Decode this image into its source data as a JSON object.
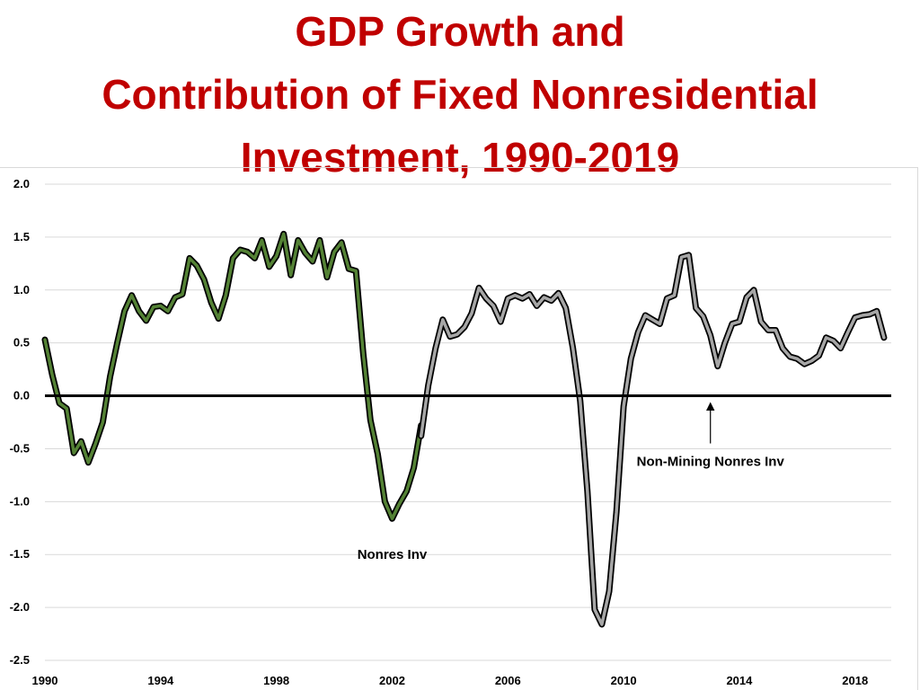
{
  "title_lines": [
    "GDP Growth and",
    "Contribution of Fixed Nonresidential",
    "Investment, 1990-2019"
  ],
  "chart_data": {
    "type": "line",
    "title": "GDP Growth and Contribution of Fixed Nonresidential Investment, 1990-2019",
    "xlabel": "",
    "ylabel": "",
    "ylim": [
      -2.5,
      2.0
    ],
    "xlim": [
      1990,
      2019.25
    ],
    "y_ticks": [
      "2.0",
      "1.5",
      "1.0",
      "0.5",
      "0.0",
      "-0.5",
      "-1.0",
      "-1.5",
      "-2.0",
      "-2.5"
    ],
    "x_ticks": [
      "1990",
      "1994",
      "1998",
      "2002",
      "2006",
      "2010",
      "2014",
      "2018"
    ],
    "grid": true,
    "colors": {
      "nonres": "#548235",
      "nonmining": "#a6a6a6",
      "outline": "#000000",
      "zero_line": "#000000",
      "grid": "#d9d9d9",
      "title": "#c00000"
    },
    "series": [
      {
        "name": "Nonres Inv",
        "points": [
          [
            1990.0,
            0.53
          ],
          [
            1990.25,
            0.2
          ],
          [
            1990.5,
            -0.07
          ],
          [
            1990.75,
            -0.12
          ],
          [
            1991.0,
            -0.54
          ],
          [
            1991.25,
            -0.43
          ],
          [
            1991.5,
            -0.63
          ],
          [
            1991.75,
            -0.45
          ],
          [
            1992.0,
            -0.25
          ],
          [
            1992.25,
            0.18
          ],
          [
            1992.5,
            0.5
          ],
          [
            1992.75,
            0.8
          ],
          [
            1993.0,
            0.95
          ],
          [
            1993.25,
            0.8
          ],
          [
            1993.5,
            0.71
          ],
          [
            1993.75,
            0.84
          ],
          [
            1994.0,
            0.85
          ],
          [
            1994.25,
            0.8
          ],
          [
            1994.5,
            0.93
          ],
          [
            1994.75,
            0.96
          ],
          [
            1995.0,
            1.3
          ],
          [
            1995.25,
            1.23
          ],
          [
            1995.5,
            1.1
          ],
          [
            1995.75,
            0.88
          ],
          [
            1996.0,
            0.73
          ],
          [
            1996.25,
            0.95
          ],
          [
            1996.5,
            1.3
          ],
          [
            1996.75,
            1.38
          ],
          [
            1997.0,
            1.36
          ],
          [
            1997.25,
            1.3
          ],
          [
            1997.5,
            1.47
          ],
          [
            1997.75,
            1.22
          ],
          [
            1998.0,
            1.32
          ],
          [
            1998.25,
            1.53
          ],
          [
            1998.5,
            1.14
          ],
          [
            1998.75,
            1.47
          ],
          [
            1999.0,
            1.35
          ],
          [
            1999.25,
            1.27
          ],
          [
            1999.5,
            1.47
          ],
          [
            1999.75,
            1.12
          ],
          [
            2000.0,
            1.36
          ],
          [
            2000.25,
            1.45
          ],
          [
            2000.5,
            1.2
          ],
          [
            2000.75,
            1.18
          ],
          [
            2001.0,
            0.4
          ],
          [
            2001.25,
            -0.23
          ],
          [
            2001.5,
            -0.55
          ],
          [
            2001.75,
            -1.0
          ],
          [
            2002.0,
            -1.16
          ],
          [
            2002.25,
            -1.02
          ],
          [
            2002.5,
            -0.9
          ],
          [
            2002.75,
            -0.68
          ],
          [
            2003.0,
            -0.28
          ]
        ]
      },
      {
        "name": "Non-Mining Nonres Inv",
        "points": [
          [
            2003.0,
            -0.38
          ],
          [
            2003.25,
            0.1
          ],
          [
            2003.5,
            0.45
          ],
          [
            2003.75,
            0.72
          ],
          [
            2004.0,
            0.56
          ],
          [
            2004.25,
            0.58
          ],
          [
            2004.5,
            0.65
          ],
          [
            2004.75,
            0.78
          ],
          [
            2005.0,
            1.02
          ],
          [
            2005.25,
            0.92
          ],
          [
            2005.5,
            0.85
          ],
          [
            2005.75,
            0.7
          ],
          [
            2006.0,
            0.92
          ],
          [
            2006.25,
            0.95
          ],
          [
            2006.5,
            0.92
          ],
          [
            2006.75,
            0.96
          ],
          [
            2007.0,
            0.85
          ],
          [
            2007.25,
            0.93
          ],
          [
            2007.5,
            0.9
          ],
          [
            2007.75,
            0.97
          ],
          [
            2008.0,
            0.83
          ],
          [
            2008.25,
            0.45
          ],
          [
            2008.5,
            -0.05
          ],
          [
            2008.75,
            -0.9
          ],
          [
            2009.0,
            -2.02
          ],
          [
            2009.25,
            -2.16
          ],
          [
            2009.5,
            -1.85
          ],
          [
            2009.75,
            -1.1
          ],
          [
            2010.0,
            -0.1
          ],
          [
            2010.25,
            0.35
          ],
          [
            2010.5,
            0.6
          ],
          [
            2010.75,
            0.76
          ],
          [
            2011.0,
            0.72
          ],
          [
            2011.25,
            0.68
          ],
          [
            2011.5,
            0.92
          ],
          [
            2011.75,
            0.95
          ],
          [
            2012.0,
            1.31
          ],
          [
            2012.25,
            1.33
          ],
          [
            2012.5,
            0.83
          ],
          [
            2012.75,
            0.75
          ],
          [
            2013.0,
            0.57
          ],
          [
            2013.25,
            0.28
          ],
          [
            2013.5,
            0.5
          ],
          [
            2013.75,
            0.68
          ],
          [
            2014.0,
            0.7
          ],
          [
            2014.25,
            0.93
          ],
          [
            2014.5,
            1.0
          ],
          [
            2014.75,
            0.7
          ],
          [
            2015.0,
            0.62
          ],
          [
            2015.25,
            0.62
          ],
          [
            2015.5,
            0.45
          ],
          [
            2015.75,
            0.37
          ],
          [
            2016.0,
            0.35
          ],
          [
            2016.25,
            0.3
          ],
          [
            2016.5,
            0.33
          ],
          [
            2016.75,
            0.38
          ],
          [
            2017.0,
            0.55
          ],
          [
            2017.25,
            0.52
          ],
          [
            2017.5,
            0.45
          ],
          [
            2017.75,
            0.6
          ],
          [
            2018.0,
            0.74
          ],
          [
            2018.25,
            0.76
          ],
          [
            2018.5,
            0.77
          ],
          [
            2018.75,
            0.8
          ],
          [
            2019.0,
            0.55
          ]
        ]
      }
    ],
    "annotations": [
      {
        "text": "Nonres Inv",
        "x": 2002.0,
        "y": -1.5
      },
      {
        "text": "Non-Mining Nonres Inv",
        "x": 2013.0,
        "y": -0.62,
        "arrow_from": [
          2013.0,
          -0.45
        ],
        "arrow_to": [
          2013.0,
          -0.1
        ]
      }
    ]
  }
}
